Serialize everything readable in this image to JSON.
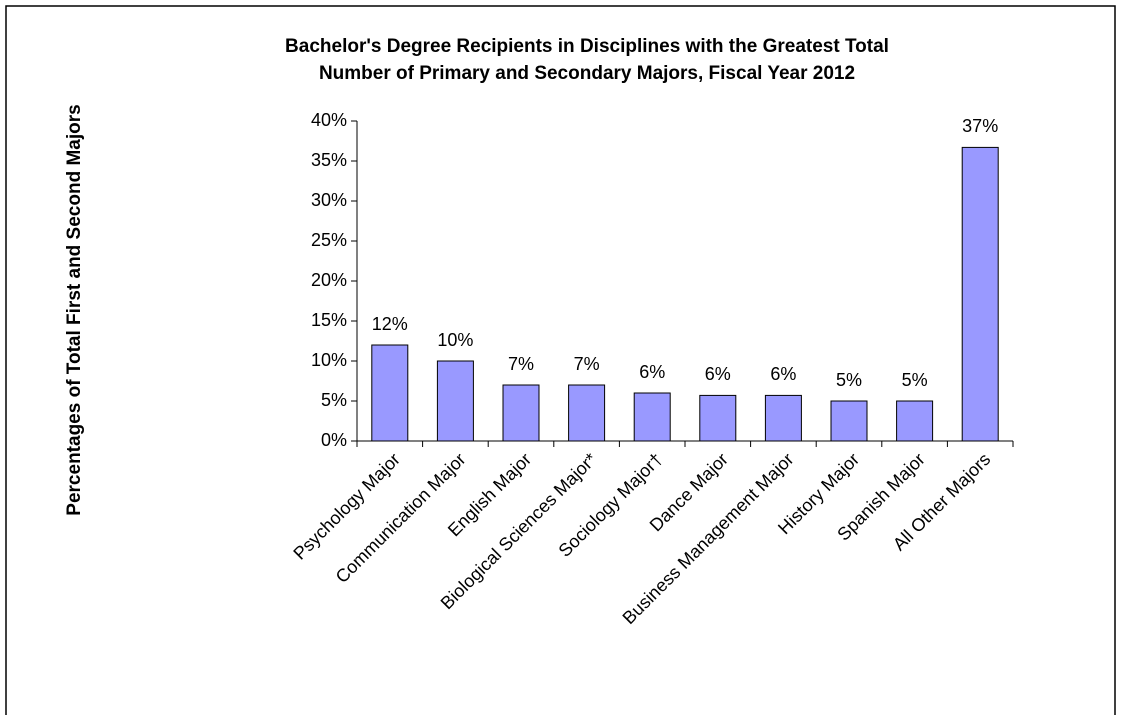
{
  "chart_data": {
    "type": "bar",
    "title": [
      "Bachelor's Degree Recipients in Disciplines with the Greatest Total",
      "Number of Primary and Secondary Majors, Fiscal Year 2012"
    ],
    "y_label": "Percentages of Total First and Second Majors",
    "categories": [
      "Psychology Major",
      "Communication Major",
      "English Major",
      "Biological Sciences Major*",
      "Sociology Major†",
      "Dance Major",
      "Business Management Major",
      "History Major",
      "Spanish Major",
      "All Other Majors"
    ],
    "values": [
      12,
      10,
      7,
      7,
      6,
      5.7,
      5.7,
      5,
      5,
      36.7
    ],
    "value_labels": [
      "12%",
      "10%",
      "7%",
      "7%",
      "6%",
      "6%",
      "6%",
      "5%",
      "5%",
      "37%"
    ],
    "color": "#9999ff",
    "ylim": [
      0,
      40
    ],
    "yticks": [
      {
        "value": 0,
        "label": "0%"
      },
      {
        "value": 5,
        "label": "5%"
      },
      {
        "value": 10,
        "label": "10%"
      },
      {
        "value": 15,
        "label": "15%"
      },
      {
        "value": 20,
        "label": "20%"
      },
      {
        "value": 25,
        "label": "25%"
      },
      {
        "value": 30,
        "label": "30%"
      },
      {
        "value": 35,
        "label": "35%"
      },
      {
        "value": 40,
        "label": "40%"
      }
    ],
    "grid": false
  }
}
